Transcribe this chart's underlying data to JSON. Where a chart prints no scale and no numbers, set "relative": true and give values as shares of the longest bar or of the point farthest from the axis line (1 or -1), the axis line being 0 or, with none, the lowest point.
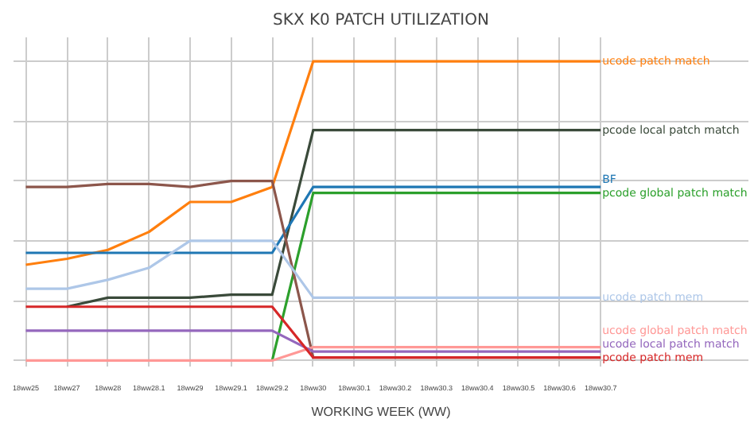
{
  "chart_data": {
    "type": "line",
    "title": "SKX K0 PATCH UTILIZATION",
    "xlabel": "WORKING WEEK (WW)",
    "relative": true,
    "grid": true,
    "marker": "none",
    "line_style": "solid",
    "categories": [
      "18ww25",
      "18ww27",
      "18ww28",
      "18ww28.1",
      "18ww29",
      "18ww29.1",
      "18ww29.2",
      "18ww30",
      "18ww30.1",
      "18ww30.2",
      "18ww30.3",
      "18ww30.4",
      "18ww30.5",
      "18ww30.6",
      "18ww30.7"
    ],
    "series": [
      {
        "name": "ucode patch match",
        "color": "#ff7f0e",
        "values": [
          0.32,
          0.34,
          0.37,
          0.43,
          0.53,
          0.53,
          0.58,
          1,
          1,
          1,
          1,
          1,
          1,
          1,
          1
        ]
      },
      {
        "name": "pcode local patch match",
        "color": "#3a4a3a",
        "values": [
          null,
          0.18,
          0.21,
          0.21,
          0.21,
          0.22,
          0.22,
          0.77,
          0.77,
          0.77,
          0.77,
          0.77,
          0.77,
          0.77,
          0.77
        ]
      },
      {
        "name": "BF",
        "color": "#1f77b4",
        "values": [
          0.36,
          0.36,
          0.36,
          0.36,
          0.36,
          0.36,
          0.36,
          0.58,
          0.58,
          0.58,
          0.58,
          0.58,
          0.58,
          0.58,
          0.58
        ]
      },
      {
        "name": "pcode global patch match",
        "color": "#2ca02c",
        "values": [
          null,
          null,
          null,
          null,
          null,
          null,
          0,
          0.56,
          0.56,
          0.56,
          0.56,
          0.56,
          0.56,
          0.56,
          0.56
        ]
      },
      {
        "color": "#8c564b",
        "values": [
          0.58,
          0.58,
          0.59,
          0.59,
          0.58,
          0.6,
          0.6,
          0.01,
          0.01,
          0.01,
          0.01,
          0.01,
          0.01,
          0.01,
          0.01
        ]
      },
      {
        "name": "ucode patch mem",
        "color": "#aec7e8",
        "values": [
          0.24,
          0.24,
          0.27,
          0.31,
          0.4,
          0.4,
          0.4,
          0.21,
          0.21,
          0.21,
          0.21,
          0.21,
          0.21,
          0.21,
          0.21
        ]
      },
      {
        "name": "ucode global patch match",
        "color": "#ff9896",
        "values": [
          0,
          0,
          0,
          0,
          0,
          0,
          0,
          0.045,
          0.045,
          0.045,
          0.045,
          0.045,
          0.045,
          0.045,
          0.045
        ]
      },
      {
        "name": "ucode local patch match",
        "color": "#9467bd",
        "values": [
          0.1,
          0.1,
          0.1,
          0.1,
          0.1,
          0.1,
          0.1,
          0.03,
          0.03,
          0.03,
          0.03,
          0.03,
          0.03,
          0.03,
          0.03
        ]
      },
      {
        "name": "pcode patch mem",
        "color": "#d62728",
        "values": [
          0.18,
          0.18,
          0.18,
          0.18,
          0.18,
          0.18,
          0.18,
          0.01,
          0.01,
          0.01,
          0.01,
          0.01,
          0.01,
          0.01,
          0.01
        ]
      }
    ]
  }
}
